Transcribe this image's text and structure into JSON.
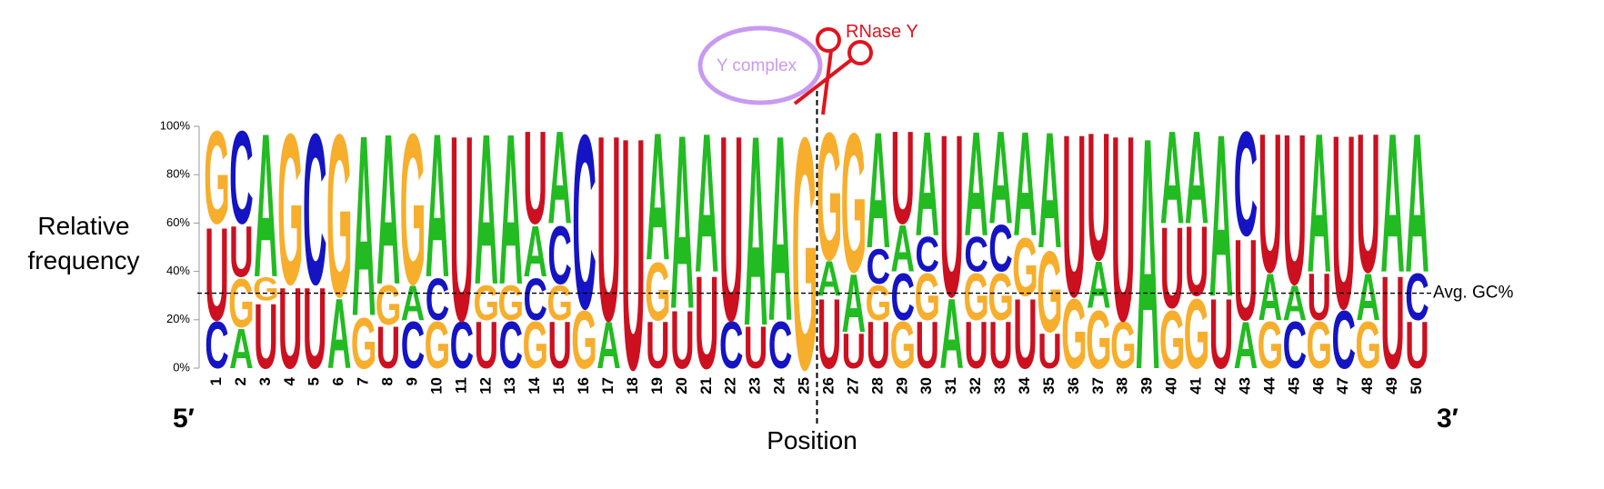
{
  "chart_data": {
    "type": "sequence-logo",
    "x_label": "Position",
    "y_label_lines": [
      "Relative",
      "frequency"
    ],
    "five_prime": "5′",
    "three_prime": "3′",
    "annotations": {
      "complex": "Y complex",
      "enzyme": "RNase Y",
      "avg_gc": {
        "label": "Avg. GC%",
        "value": 31
      }
    },
    "colors": {
      "A": "#22bb22",
      "C": "#1414c4",
      "G": "#f7ae2c",
      "U": "#cc1020"
    },
    "ylim": [
      0,
      100
    ],
    "yticks": [
      {
        "value": 0,
        "label": "0%"
      },
      {
        "value": 20,
        "label": "20%"
      },
      {
        "value": 40,
        "label": "40%"
      },
      {
        "value": 60,
        "label": "60%"
      },
      {
        "value": 80,
        "label": "80%"
      },
      {
        "value": 100,
        "label": "100%"
      }
    ],
    "categories": [
      1,
      2,
      3,
      4,
      5,
      6,
      7,
      8,
      9,
      10,
      11,
      12,
      13,
      14,
      15,
      16,
      17,
      18,
      19,
      20,
      21,
      22,
      23,
      24,
      25,
      26,
      27,
      28,
      29,
      30,
      31,
      32,
      33,
      34,
      35,
      36,
      37,
      38,
      39,
      40,
      41,
      42,
      43,
      44,
      45,
      46,
      47,
      48,
      49,
      50
    ],
    "stacks": [
      [
        {
          "base": "C",
          "value": 20
        },
        {
          "base": "U",
          "value": 40
        },
        {
          "base": "G",
          "value": 40
        }
      ],
      [
        {
          "base": "A",
          "value": 17
        },
        {
          "base": "G",
          "value": 21
        },
        {
          "base": "U",
          "value": 22
        },
        {
          "base": "C",
          "value": 40
        }
      ],
      [
        {
          "base": "U",
          "value": 28
        },
        {
          "base": "G",
          "value": 10
        },
        {
          "base": "A",
          "value": 62
        }
      ],
      [
        {
          "base": "U",
          "value": 35
        },
        {
          "base": "G",
          "value": 65
        }
      ],
      [
        {
          "base": "U",
          "value": 35
        },
        {
          "base": "C",
          "value": 65
        }
      ],
      [
        {
          "base": "A",
          "value": 30
        },
        {
          "base": "G",
          "value": 70
        }
      ],
      [
        {
          "base": "G",
          "value": 22
        },
        {
          "base": "A",
          "value": 78
        }
      ],
      [
        {
          "base": "U",
          "value": 18
        },
        {
          "base": "G",
          "value": 17
        },
        {
          "base": "A",
          "value": 65
        }
      ],
      [
        {
          "base": "C",
          "value": 20
        },
        {
          "base": "A",
          "value": 15
        },
        {
          "base": "G",
          "value": 65
        }
      ],
      [
        {
          "base": "G",
          "value": 20
        },
        {
          "base": "C",
          "value": 18
        },
        {
          "base": "A",
          "value": 62
        }
      ],
      [
        {
          "base": "C",
          "value": 20
        },
        {
          "base": "U",
          "value": 80
        }
      ],
      [
        {
          "base": "U",
          "value": 20
        },
        {
          "base": "G",
          "value": 15
        },
        {
          "base": "A",
          "value": 65
        }
      ],
      [
        {
          "base": "C",
          "value": 20
        },
        {
          "base": "G",
          "value": 15
        },
        {
          "base": "A",
          "value": 65
        }
      ],
      [
        {
          "base": "G",
          "value": 20
        },
        {
          "base": "C",
          "value": 18
        },
        {
          "base": "A",
          "value": 22
        },
        {
          "base": "U",
          "value": 40
        }
      ],
      [
        {
          "base": "U",
          "value": 20
        },
        {
          "base": "G",
          "value": 15
        },
        {
          "base": "C",
          "value": 25
        },
        {
          "base": "A",
          "value": 40
        }
      ],
      [
        {
          "base": "G",
          "value": 25
        },
        {
          "base": "C",
          "value": 75
        }
      ],
      [
        {
          "base": "A",
          "value": 20
        },
        {
          "base": "U",
          "value": 80
        }
      ],
      [
        {
          "base": "U",
          "value": 100
        }
      ],
      [
        {
          "base": "U",
          "value": 20
        },
        {
          "base": "G",
          "value": 25
        },
        {
          "base": "A",
          "value": 55
        }
      ],
      [
        {
          "base": "U",
          "value": 25
        },
        {
          "base": "A",
          "value": 75
        }
      ],
      [
        {
          "base": "U",
          "value": 40
        },
        {
          "base": "A",
          "value": 60
        }
      ],
      [
        {
          "base": "C",
          "value": 20
        },
        {
          "base": "U",
          "value": 80
        }
      ],
      [
        {
          "base": "U",
          "value": 18
        },
        {
          "base": "A",
          "value": 82
        }
      ],
      [
        {
          "base": "C",
          "value": 20
        },
        {
          "base": "A",
          "value": 80
        }
      ],
      [
        {
          "base": "G",
          "value": 100
        }
      ],
      [
        {
          "base": "U",
          "value": 30
        },
        {
          "base": "A",
          "value": 15
        },
        {
          "base": "G",
          "value": 55
        }
      ],
      [
        {
          "base": "U",
          "value": 15
        },
        {
          "base": "A",
          "value": 25
        },
        {
          "base": "G",
          "value": 60
        }
      ],
      [
        {
          "base": "U",
          "value": 20
        },
        {
          "base": "G",
          "value": 15
        },
        {
          "base": "C",
          "value": 15
        },
        {
          "base": "A",
          "value": 50
        }
      ],
      [
        {
          "base": "G",
          "value": 20
        },
        {
          "base": "C",
          "value": 20
        },
        {
          "base": "A",
          "value": 20
        },
        {
          "base": "U",
          "value": 40
        }
      ],
      [
        {
          "base": "U",
          "value": 20
        },
        {
          "base": "G",
          "value": 20
        },
        {
          "base": "C",
          "value": 15
        },
        {
          "base": "A",
          "value": 45
        }
      ],
      [
        {
          "base": "A",
          "value": 30
        },
        {
          "base": "U",
          "value": 70
        }
      ],
      [
        {
          "base": "U",
          "value": 20
        },
        {
          "base": "G",
          "value": 20
        },
        {
          "base": "C",
          "value": 15
        },
        {
          "base": "A",
          "value": 45
        }
      ],
      [
        {
          "base": "U",
          "value": 20
        },
        {
          "base": "G",
          "value": 20
        },
        {
          "base": "C",
          "value": 20
        },
        {
          "base": "A",
          "value": 40
        }
      ],
      [
        {
          "base": "U",
          "value": 30
        },
        {
          "base": "G",
          "value": 25
        },
        {
          "base": "A",
          "value": 45
        }
      ],
      [
        {
          "base": "U",
          "value": 15
        },
        {
          "base": "G",
          "value": 35
        },
        {
          "base": "A",
          "value": 50
        }
      ],
      [
        {
          "base": "G",
          "value": 30
        },
        {
          "base": "U",
          "value": 70
        }
      ],
      [
        {
          "base": "G",
          "value": 25
        },
        {
          "base": "A",
          "value": 20
        },
        {
          "base": "U",
          "value": 55
        }
      ],
      [
        {
          "base": "G",
          "value": 20
        },
        {
          "base": "U",
          "value": 80
        }
      ],
      [
        {
          "base": "A",
          "value": 100
        }
      ],
      [
        {
          "base": "G",
          "value": 25
        },
        {
          "base": "U",
          "value": 35
        },
        {
          "base": "A",
          "value": 40
        }
      ],
      [
        {
          "base": "G",
          "value": 30
        },
        {
          "base": "U",
          "value": 30
        },
        {
          "base": "A",
          "value": 40
        }
      ],
      [
        {
          "base": "U",
          "value": 30
        },
        {
          "base": "A",
          "value": 70
        }
      ],
      [
        {
          "base": "A",
          "value": 20
        },
        {
          "base": "U",
          "value": 35
        },
        {
          "base": "C",
          "value": 45
        }
      ],
      [
        {
          "base": "G",
          "value": 20
        },
        {
          "base": "A",
          "value": 20
        },
        {
          "base": "U",
          "value": 60
        }
      ],
      [
        {
          "base": "C",
          "value": 20
        },
        {
          "base": "A",
          "value": 15
        },
        {
          "base": "U",
          "value": 65
        }
      ],
      [
        {
          "base": "G",
          "value": 20
        },
        {
          "base": "U",
          "value": 20
        },
        {
          "base": "A",
          "value": 60
        }
      ],
      [
        {
          "base": "C",
          "value": 25
        },
        {
          "base": "U",
          "value": 75
        }
      ],
      [
        {
          "base": "G",
          "value": 20
        },
        {
          "base": "A",
          "value": 20
        },
        {
          "base": "U",
          "value": 60
        }
      ],
      [
        {
          "base": "U",
          "value": 40
        },
        {
          "base": "A",
          "value": 60
        }
      ],
      [
        {
          "base": "U",
          "value": 20
        },
        {
          "base": "C",
          "value": 20
        },
        {
          "base": "A",
          "value": 60
        }
      ]
    ]
  }
}
